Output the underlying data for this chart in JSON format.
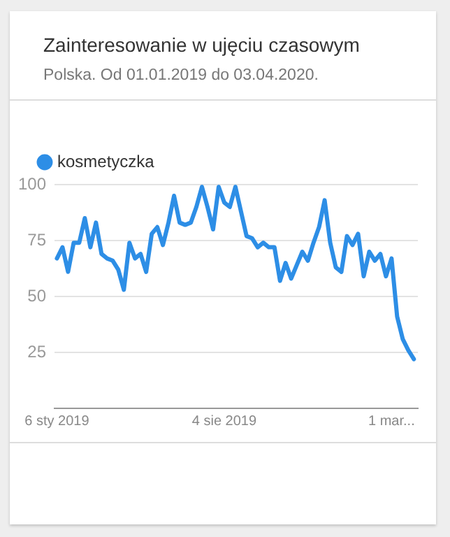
{
  "chart_data": {
    "type": "line",
    "title": "Zainteresowanie w ujęciu czasowym",
    "subtitle": "Polska. Od 01.01.2019 do 03.04.2020.",
    "x": [
      "2019-01-06",
      "2019-01-13",
      "2019-01-20",
      "2019-01-27",
      "2019-02-03",
      "2019-02-10",
      "2019-02-17",
      "2019-02-24",
      "2019-03-03",
      "2019-03-10",
      "2019-03-17",
      "2019-03-24",
      "2019-03-31",
      "2019-04-07",
      "2019-04-14",
      "2019-04-21",
      "2019-04-28",
      "2019-05-05",
      "2019-05-12",
      "2019-05-19",
      "2019-05-26",
      "2019-06-02",
      "2019-06-09",
      "2019-06-16",
      "2019-06-23",
      "2019-06-30",
      "2019-07-07",
      "2019-07-14",
      "2019-07-21",
      "2019-07-28",
      "2019-08-04",
      "2019-08-11",
      "2019-08-18",
      "2019-08-25",
      "2019-09-01",
      "2019-09-08",
      "2019-09-15",
      "2019-09-22",
      "2019-09-29",
      "2019-10-06",
      "2019-10-13",
      "2019-10-20",
      "2019-10-27",
      "2019-11-03",
      "2019-11-10",
      "2019-11-17",
      "2019-11-24",
      "2019-12-01",
      "2019-12-08",
      "2019-12-15",
      "2019-12-22",
      "2019-12-29",
      "2020-01-05",
      "2020-01-12",
      "2020-01-19",
      "2020-01-26",
      "2020-02-02",
      "2020-02-09",
      "2020-02-16",
      "2020-02-23",
      "2020-03-01",
      "2020-03-08",
      "2020-03-15",
      "2020-03-22",
      "2020-03-29"
    ],
    "series": [
      {
        "name": "kosmetyczka",
        "color": "#2d8ee6",
        "values": [
          67,
          72,
          61,
          74,
          74,
          85,
          72,
          83,
          69,
          67,
          66,
          62,
          53,
          74,
          67,
          69,
          61,
          78,
          81,
          73,
          83,
          95,
          83,
          82,
          83,
          90,
          99,
          90,
          80,
          99,
          92,
          90,
          99,
          88,
          77,
          76,
          72,
          74,
          72,
          72,
          57,
          65,
          58,
          64,
          70,
          66,
          74,
          81,
          93,
          74,
          63,
          61,
          77,
          73,
          78,
          59,
          70,
          66,
          69,
          59,
          67,
          41,
          31,
          26,
          22
        ]
      }
    ],
    "xlim": [
      "2019-01-03",
      "2020-04-03"
    ],
    "xticks": [
      {
        "value": "2019-01-06",
        "label": "6 sty 2019"
      },
      {
        "value": "2019-08-04",
        "label": "4 sie 2019"
      },
      {
        "value": "2020-03-01",
        "label": "1 mar..."
      }
    ],
    "ylim": [
      0,
      100
    ],
    "yticks": [
      {
        "value": 0,
        "label": null
      },
      25,
      50,
      75,
      100
    ],
    "grid": "y",
    "legend": "top left",
    "marker": "none",
    "line_style": "solid"
  }
}
